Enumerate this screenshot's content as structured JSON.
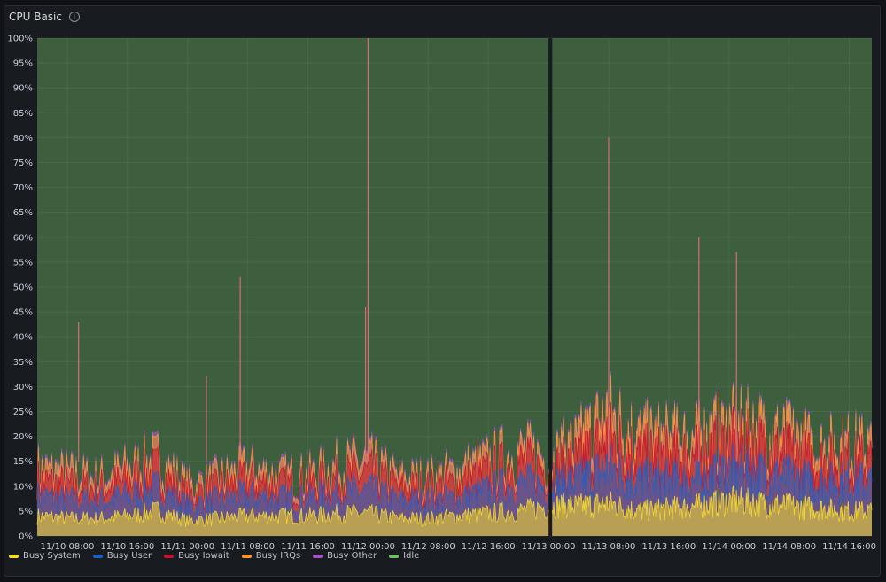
{
  "panel": {
    "title": "CPU Basic",
    "info_icon": "info-icon"
  },
  "chart_data": {
    "type": "area",
    "stacked": true,
    "title": "CPU Basic",
    "ylim": [
      0,
      100
    ],
    "y_unit": "%",
    "y_ticks": [
      "0%",
      "5%",
      "10%",
      "15%",
      "20%",
      "25%",
      "30%",
      "35%",
      "40%",
      "45%",
      "50%",
      "55%",
      "60%",
      "65%",
      "70%",
      "75%",
      "80%",
      "85%",
      "90%",
      "95%",
      "100%"
    ],
    "x_tick_labels": [
      "11/10 08:00",
      "11/10 16:00",
      "11/11 00:00",
      "11/11 08:00",
      "11/11 16:00",
      "11/12 00:00",
      "11/12 08:00",
      "11/12 16:00",
      "11/13 00:00",
      "11/13 08:00",
      "11/13 16:00",
      "11/14 00:00",
      "11/14 08:00",
      "11/14 16:00"
    ],
    "x_range": [
      "11/10 04:00",
      "11/14 19:00"
    ],
    "grid": true,
    "legend_position": "bottom",
    "gap": [
      "11/13 00:00",
      "11/13 00:30"
    ],
    "x": [
      "11/10 04:00",
      "11/10 08:00",
      "11/10 12:00",
      "11/10 16:00",
      "11/10 20:00",
      "11/11 00:00",
      "11/11 04:00",
      "11/11 08:00",
      "11/11 12:00",
      "11/11 16:00",
      "11/11 20:00",
      "11/12 00:00",
      "11/12 04:00",
      "11/12 08:00",
      "11/12 12:00",
      "11/12 16:00",
      "11/12 20:00",
      "11/13 00:30",
      "11/13 04:00",
      "11/13 08:00",
      "11/13 12:00",
      "11/13 16:00",
      "11/13 20:00",
      "11/14 00:00",
      "11/14 04:00",
      "11/14 08:00",
      "11/14 12:00",
      "11/14 16:00",
      "11/14 19:00"
    ],
    "series": [
      {
        "name": "Busy System",
        "color": "#fade2a",
        "values": [
          4,
          3.5,
          3.5,
          4,
          5,
          3,
          3.5,
          4,
          4,
          4,
          4.5,
          4.5,
          3.5,
          3.5,
          4,
          4.5,
          5,
          6,
          6,
          6.5,
          5,
          5.5,
          6,
          7,
          6.5,
          6,
          5.5,
          5,
          5
        ]
      },
      {
        "name": "Busy User",
        "color": "#1f60c4",
        "values": [
          4,
          3.5,
          3.5,
          4,
          4.5,
          3,
          3.5,
          4,
          3.5,
          3.5,
          4,
          4.5,
          3.5,
          3.5,
          3.5,
          4.5,
          5.5,
          4,
          5,
          7,
          6,
          5.5,
          5,
          6,
          6,
          5.5,
          5,
          6,
          5.5
        ]
      },
      {
        "name": "Busy Iowait",
        "color": "#c4162a",
        "values": [
          3,
          3,
          2.5,
          3,
          3.5,
          2,
          2.5,
          3,
          2.5,
          2.5,
          3,
          3.5,
          2.5,
          2.5,
          3,
          3.5,
          4,
          3,
          4,
          6,
          5,
          4.5,
          5,
          5,
          5,
          4.5,
          4,
          4,
          4
        ]
      },
      {
        "name": "Busy IRQs",
        "color": "#ff9830",
        "values": [
          2,
          2,
          1.5,
          2,
          2,
          1.5,
          1.5,
          2,
          1.5,
          1.5,
          2,
          2,
          1.5,
          1.5,
          2,
          2,
          2,
          2,
          3,
          4,
          3,
          3,
          3,
          3,
          3,
          3,
          2.5,
          2.5,
          2.5
        ]
      },
      {
        "name": "Busy Other",
        "color": "#a352cc",
        "values": [
          0.5,
          0.5,
          0.5,
          0.5,
          0.5,
          0.5,
          0.5,
          0.5,
          0.5,
          0.5,
          0.5,
          0.5,
          0.5,
          0.5,
          0.5,
          0.5,
          0.5,
          0.5,
          0.5,
          0.5,
          0.5,
          0.5,
          0.5,
          0.5,
          0.5,
          0.5,
          0.5,
          0.5,
          0.5
        ]
      },
      {
        "name": "Idle",
        "color": "#73bf69"
      }
    ],
    "spikes": [
      {
        "x": "11/10 09:30",
        "value": 43
      },
      {
        "x": "11/11 02:30",
        "value": 32
      },
      {
        "x": "11/11 07:00",
        "value": 52
      },
      {
        "x": "11/11 23:40",
        "value": 46
      },
      {
        "x": "11/12 00:00",
        "value": 100
      },
      {
        "x": "11/13 08:00",
        "value": 80
      },
      {
        "x": "11/13 20:00",
        "value": 60
      },
      {
        "x": "11/14 01:00",
        "value": 57
      }
    ]
  }
}
